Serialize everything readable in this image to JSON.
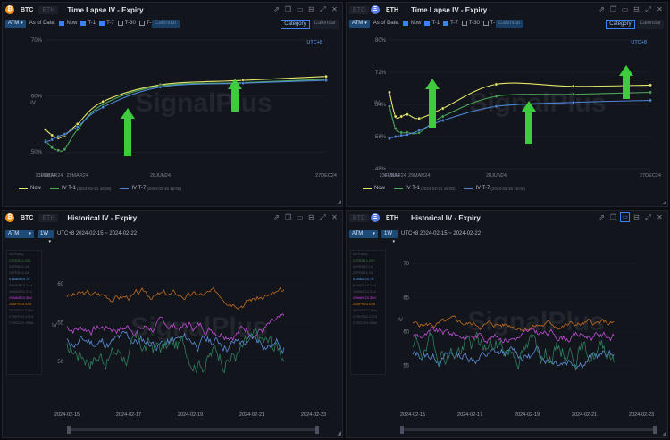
{
  "panels": [
    {
      "coin": "BTC",
      "coin_color": "#f7931a",
      "tabs": [
        "BTC",
        "ETH"
      ],
      "active_tab": 0,
      "title": "Time Lapse IV - Expiry",
      "atm": "ATM",
      "as_of_label": "As of Date:",
      "checks": [
        {
          "label": "Now",
          "checked": true
        },
        {
          "label": "T-1",
          "checked": true
        },
        {
          "label": "T-7",
          "checked": true
        },
        {
          "label": "T-30",
          "checked": false
        },
        {
          "label": "T-",
          "checked": false
        }
      ],
      "calendar_input": "Calendar",
      "buttons": [
        "Category",
        "Calendar"
      ],
      "timezone": "UTC+8",
      "watermark": "SignalPlus",
      "legend": [
        {
          "name": "Now",
          "sub": ""
        },
        {
          "name": "IV T-1",
          "sub": "(2024-02-21 16:00)"
        },
        {
          "name": "IV T-7",
          "sub": "(2024-02-15 16:00)"
        }
      ]
    },
    {
      "coin": "ETH",
      "coin_color": "#627eea",
      "tabs": [
        "BTC",
        "ETH"
      ],
      "active_tab": 1,
      "title": "Time Lapse IV - Expiry",
      "atm": "ATM",
      "as_of_label": "As of Date:",
      "checks": [
        {
          "label": "Now",
          "checked": true
        },
        {
          "label": "T-1",
          "checked": true
        },
        {
          "label": "T-7",
          "checked": true
        },
        {
          "label": "T-30",
          "checked": false
        },
        {
          "label": "T-",
          "checked": false
        }
      ],
      "calendar_input": "Calendar",
      "buttons": [
        "Category",
        "Calendar"
      ],
      "timezone": "UTC+8",
      "watermark": "SignalPlus",
      "legend": [
        {
          "name": "Now",
          "sub": ""
        },
        {
          "name": "IV T-1",
          "sub": "(2024-02-21 16:00)"
        },
        {
          "name": "IV T-7",
          "sub": "(2024-02-15 16:00)"
        }
      ]
    },
    {
      "coin": "BTC",
      "coin_color": "#f7931a",
      "tabs": [
        "BTC",
        "ETH"
      ],
      "active_tab": 0,
      "title": "Historical IV - Expiry",
      "atm": "ATM",
      "period": "1W",
      "range_text": "UTC+8 2024-02-15 ~ 2024-02-22",
      "watermark": "SignalPlus",
      "expiries": [
        {
          "label": "All Expiry",
          "color": "#4b5563"
        },
        {
          "label": "23FEB24 23d",
          "color": "#3f7d3f"
        },
        {
          "label": "24FEB24 1d",
          "color": "#4b5563"
        },
        {
          "label": "25FEB24 2d",
          "color": "#4b5563"
        },
        {
          "label": "01MAR24 7d",
          "color": "#60a5fa"
        },
        {
          "label": "08MAR24 14d",
          "color": "#4b5563"
        },
        {
          "label": "15MAR24 21d",
          "color": "#4b5563"
        },
        {
          "label": "29MAR24 35d",
          "color": "#d946ef"
        },
        {
          "label": "26APR24 63d",
          "color": "#d97706"
        },
        {
          "label": "28JUN24 126d",
          "color": "#4b5563"
        },
        {
          "label": "27SEP24 217d",
          "color": "#4b5563"
        },
        {
          "label": "27DEC24 308d",
          "color": "#4b5563"
        }
      ]
    },
    {
      "coin": "ETH",
      "coin_color": "#627eea",
      "tabs": [
        "BTC",
        "ETH"
      ],
      "active_tab": 1,
      "title": "Historical IV - Expiry",
      "atm": "ATM",
      "period": "1W",
      "range_text": "UTC+8 2024-02-15 ~ 2024-02-22",
      "watermark": "SignalPlus",
      "expiries": [
        {
          "label": "All Expiry",
          "color": "#4b5563"
        },
        {
          "label": "23FEB24 23d",
          "color": "#3f7d3f"
        },
        {
          "label": "24FEB24 1d",
          "color": "#4b5563"
        },
        {
          "label": "25FEB24 2d",
          "color": "#4b5563"
        },
        {
          "label": "01MAR24 7d",
          "color": "#60a5fa"
        },
        {
          "label": "08MAR24 14d",
          "color": "#4b5563"
        },
        {
          "label": "15MAR24 21d",
          "color": "#4b5563"
        },
        {
          "label": "29MAR24 35d",
          "color": "#d946ef"
        },
        {
          "label": "26APR24 63d",
          "color": "#d97706"
        },
        {
          "label": "28JUN24 126d",
          "color": "#4b5563"
        },
        {
          "label": "27SEP24 217d",
          "color": "#4b5563"
        },
        {
          "label": "27DEC24 308d",
          "color": "#4b5563"
        }
      ]
    }
  ],
  "chart_data": [
    {
      "type": "line",
      "ylabel": "IV",
      "x_ticks": [
        "23FEB24",
        "01MAR24",
        "29MAR24",
        "28JUN24",
        "27DEC24"
      ],
      "y_ticks": [
        "70%",
        "60%",
        "50%"
      ],
      "ylim": [
        47,
        70
      ],
      "x": [
        "23FEB24",
        "01MAR24",
        "08MAR24",
        "15MAR24",
        "29MAR24",
        "26APR24",
        "28JUN24",
        "27SEP24",
        "27DEC24"
      ],
      "series": [
        {
          "name": "Now",
          "color": "#e5e76a",
          "values": [
            54,
            53,
            52.5,
            53,
            55,
            59,
            62,
            62.8,
            63.5
          ]
        },
        {
          "name": "IV T-1",
          "color": "#4ea859",
          "values": [
            52,
            50.8,
            50.3,
            50.5,
            54,
            58.5,
            61.8,
            62.4,
            63
          ]
        },
        {
          "name": "IV T-7",
          "color": "#4f86d6",
          "values": [
            51.8,
            52.2,
            52.8,
            53.2,
            54.5,
            58,
            61.6,
            62.3,
            62.8
          ]
        }
      ],
      "annotations": [
        "up-arrow",
        "up-arrow"
      ],
      "watermark": "SignalPlus"
    },
    {
      "type": "line",
      "ylabel": "IV",
      "x_ticks": [
        "23FEB24",
        "01MAR24",
        "29MAR24",
        "28JUN24",
        "27DEC24"
      ],
      "y_ticks": [
        "80%",
        "72%",
        "64%",
        "56%",
        "48%"
      ],
      "ylim": [
        48,
        80
      ],
      "x": [
        "23FEB24",
        "01MAR24",
        "08MAR24",
        "15MAR24",
        "29MAR24",
        "26APR24",
        "28JUN24",
        "27SEP24",
        "27DEC24"
      ],
      "series": [
        {
          "name": "Now",
          "color": "#e5e76a",
          "values": [
            67,
            61,
            61,
            61.5,
            60.5,
            63,
            69,
            68.5,
            68.8
          ]
        },
        {
          "name": "IV T-1",
          "color": "#4ea859",
          "values": [
            63.5,
            58,
            57,
            57,
            57,
            61,
            66,
            66.5,
            67
          ]
        },
        {
          "name": "IV T-7",
          "color": "#4f86d6",
          "values": [
            55.5,
            56,
            56.3,
            56.5,
            57.5,
            60,
            63.5,
            64.5,
            65
          ]
        }
      ],
      "annotations": [
        "up-arrow",
        "up-arrow",
        "up-arrow"
      ],
      "watermark": "SignalPlus"
    },
    {
      "type": "line",
      "ylabel": "IV",
      "x_ticks": [
        "2024-02-15",
        "2024-02-17",
        "2024-02-19",
        "2024-02-21",
        "2024-02-23"
      ],
      "y_ticks": [
        "60",
        "55",
        "50"
      ],
      "ylim": [
        46,
        63
      ],
      "series": [
        {
          "name": "26APR24 63d",
          "color": "#c06a1c",
          "level": 58.5,
          "amp": 0.8,
          "seed": 3
        },
        {
          "name": "29MAR24 35d",
          "color": "#c04fd6",
          "level": 54.5,
          "amp": 1.1,
          "seed": 7
        },
        {
          "name": "01MAR24 7d",
          "color": "#5b8fd9",
          "level": 52.5,
          "amp": 1.3,
          "seed": 11
        },
        {
          "name": "23FEB24 23d",
          "color": "#2f7e5e",
          "level": 51.5,
          "amp": 2.3,
          "seed": 17
        }
      ],
      "watermark": "SignalPlus"
    },
    {
      "type": "line",
      "ylabel": "IV",
      "x_ticks": [
        "2024-02-15",
        "2024-02-17",
        "2024-02-19",
        "2024-02-21",
        "2024-02-23"
      ],
      "y_ticks": [
        "70",
        "65",
        "60",
        "55"
      ],
      "ylim": [
        51,
        72
      ],
      "series": [
        {
          "name": "26APR24 63d",
          "color": "#c06a1c",
          "level": 61,
          "amp": 0.8,
          "seed": 5
        },
        {
          "name": "29MAR24 35d",
          "color": "#c04fd6",
          "level": 59.5,
          "amp": 1.0,
          "seed": 9
        },
        {
          "name": "01MAR24 7d",
          "color": "#5b8fd9",
          "level": 56.5,
          "amp": 1.3,
          "seed": 13
        },
        {
          "name": "23FEB24 23d",
          "color": "#2f7e5e",
          "level": 57.5,
          "amp": 2.6,
          "seed": 19
        }
      ],
      "watermark": "SignalPlus"
    }
  ]
}
